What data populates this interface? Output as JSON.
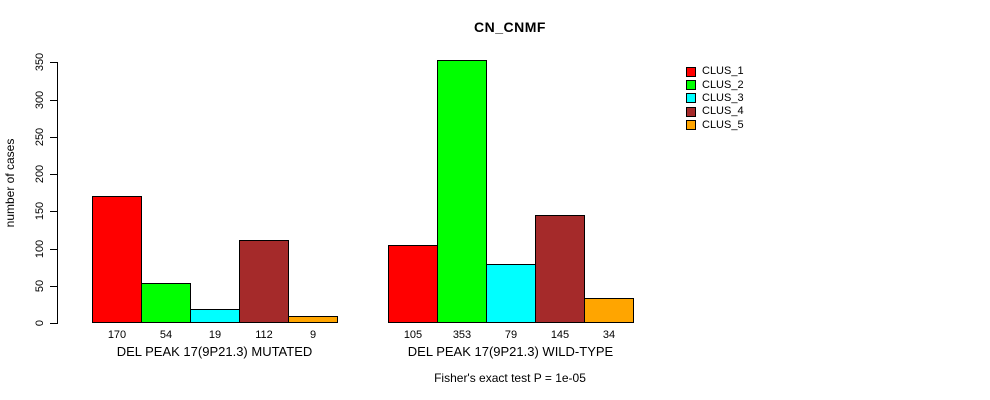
{
  "title": "CN_CNMF",
  "y_axis": {
    "label": "number of cases",
    "tick_labels": [
      "0",
      "50",
      "100",
      "150",
      "200",
      "250",
      "300",
      "350"
    ]
  },
  "footnote": "Fisher's exact test P = 1e-05",
  "legend": {
    "items": [
      {
        "label": "CLUS_1",
        "color": "#ff0000"
      },
      {
        "label": "CLUS_2",
        "color": "#00ff00"
      },
      {
        "label": "CLUS_3",
        "color": "#00ffff"
      },
      {
        "label": "CLUS_4",
        "color": "#a52a2a"
      },
      {
        "label": "CLUS_5",
        "color": "#ffa500"
      }
    ]
  },
  "chart_data": {
    "type": "bar",
    "title": "CN_CNMF",
    "xlabel": "",
    "ylabel": "number of cases",
    "ylim": [
      0,
      350
    ],
    "y_ticks": [
      0,
      50,
      100,
      150,
      200,
      250,
      300,
      350
    ],
    "grid": false,
    "legend_position": "right-outside-top",
    "series_names": [
      "CLUS_1",
      "CLUS_2",
      "CLUS_3",
      "CLUS_4",
      "CLUS_5"
    ],
    "series_colors": [
      "#ff0000",
      "#00ff00",
      "#00ffff",
      "#a52a2a",
      "#ffa500"
    ],
    "groups": [
      {
        "label": "DEL PEAK 17(9P21.3) MUTATED",
        "values": [
          170,
          54,
          19,
          112,
          9
        ]
      },
      {
        "label": "DEL PEAK 17(9P21.3) WILD-TYPE",
        "values": [
          105,
          353,
          79,
          145,
          34
        ]
      }
    ],
    "bar_value_labels_shown": true,
    "annotation": "Fisher's exact test P = 1e-05"
  }
}
